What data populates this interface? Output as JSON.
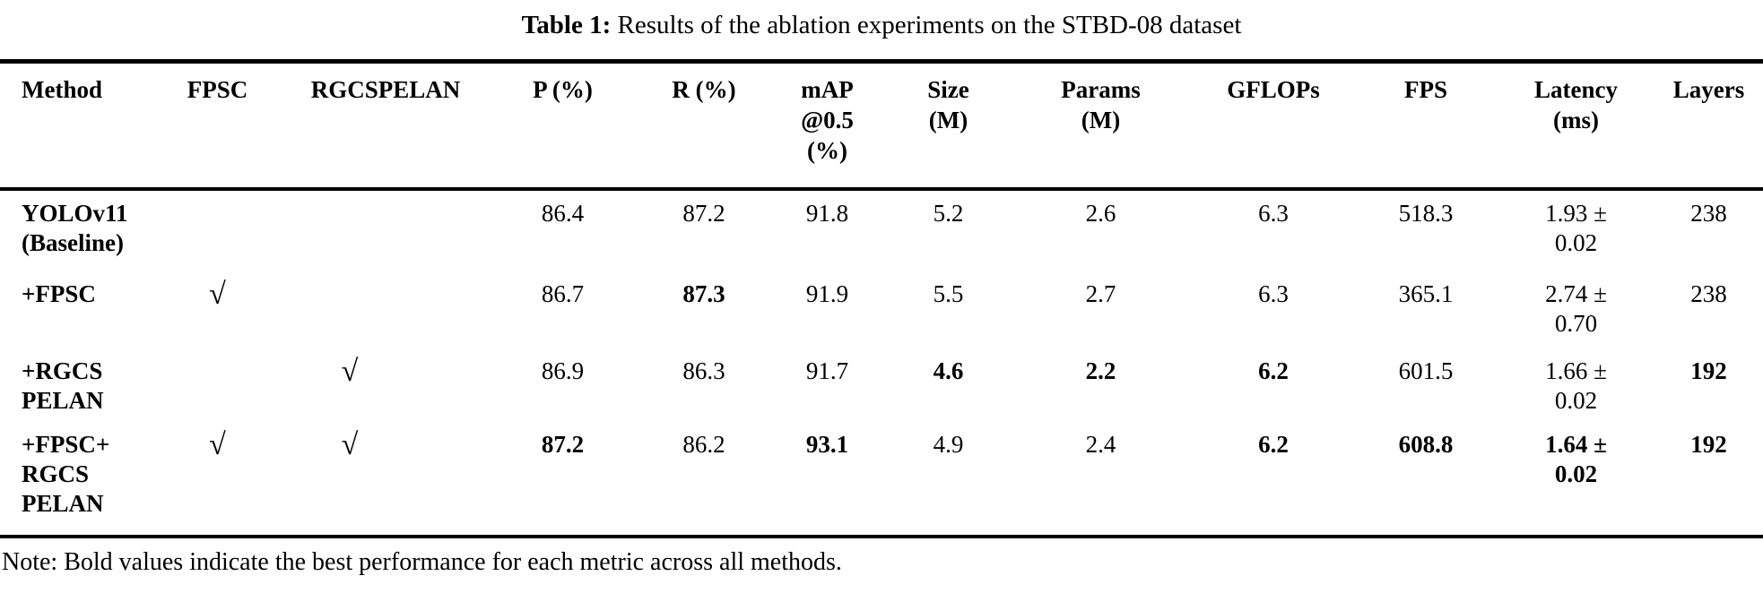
{
  "title": {
    "label": "Table 1:",
    "text": " Results of the ablation experiments on the STBD-08 dataset"
  },
  "table": {
    "checkmark": "√",
    "columns": [
      {
        "id": "method",
        "label": "Method"
      },
      {
        "id": "fpsc",
        "label": "FPSC"
      },
      {
        "id": "rgcspelan",
        "label": "RGCSPELAN"
      },
      {
        "id": "p",
        "label": "P (%)"
      },
      {
        "id": "r",
        "label": "R (%)"
      },
      {
        "id": "map",
        "label": "mAP\n@0.5\n(%)"
      },
      {
        "id": "size",
        "label": "Size\n(M)"
      },
      {
        "id": "params",
        "label": "Params\n(M)"
      },
      {
        "id": "gflops",
        "label": "GFLOPs"
      },
      {
        "id": "fps",
        "label": "FPS"
      },
      {
        "id": "latency",
        "label": "Latency\n(ms)"
      },
      {
        "id": "layers",
        "label": "Layers"
      }
    ],
    "rows": [
      {
        "method": "YOLOv11\n(Baseline)",
        "fpsc": false,
        "rgcspelan": false,
        "cells": [
          {
            "v": "86.4",
            "b": false
          },
          {
            "v": "87.2",
            "b": false
          },
          {
            "v": "91.8",
            "b": false
          },
          {
            "v": "5.2",
            "b": false
          },
          {
            "v": "2.6",
            "b": false
          },
          {
            "v": "6.3",
            "b": false
          },
          {
            "v": "518.3",
            "b": false
          },
          {
            "v": "1.93 ±\n0.02",
            "b": false
          },
          {
            "v": "238",
            "b": false
          }
        ]
      },
      {
        "method": "+FPSC",
        "fpsc": true,
        "rgcspelan": false,
        "cells": [
          {
            "v": "86.7",
            "b": false
          },
          {
            "v": "87.3",
            "b": true
          },
          {
            "v": "91.9",
            "b": false
          },
          {
            "v": "5.5",
            "b": false
          },
          {
            "v": "2.7",
            "b": false
          },
          {
            "v": "6.3",
            "b": false
          },
          {
            "v": "365.1",
            "b": false
          },
          {
            "v": "2.74 ±\n0.70",
            "b": false
          },
          {
            "v": "238",
            "b": false
          }
        ]
      },
      {
        "method": "+RGCS\nPELAN",
        "fpsc": false,
        "rgcspelan": true,
        "cells": [
          {
            "v": "86.9",
            "b": false
          },
          {
            "v": "86.3",
            "b": false
          },
          {
            "v": "91.7",
            "b": false
          },
          {
            "v": "4.6",
            "b": true
          },
          {
            "v": "2.2",
            "b": true
          },
          {
            "v": "6.2",
            "b": true
          },
          {
            "v": "601.5",
            "b": false
          },
          {
            "v": "1.66 ±\n0.02",
            "b": false
          },
          {
            "v": "192",
            "b": true
          }
        ]
      },
      {
        "method": "+FPSC+\nRGCS\nPELAN",
        "fpsc": true,
        "rgcspelan": true,
        "cells": [
          {
            "v": "87.2",
            "b": true
          },
          {
            "v": "86.2",
            "b": false
          },
          {
            "v": "93.1",
            "b": true
          },
          {
            "v": "4.9",
            "b": false
          },
          {
            "v": "2.4",
            "b": false
          },
          {
            "v": "6.2",
            "b": true
          },
          {
            "v": "608.8",
            "b": true
          },
          {
            "v": "1.64 ±\n0.02",
            "b": true
          },
          {
            "v": "192",
            "b": true
          }
        ]
      }
    ]
  },
  "note": "Note: Bold values indicate the best performance for each metric across all methods."
}
